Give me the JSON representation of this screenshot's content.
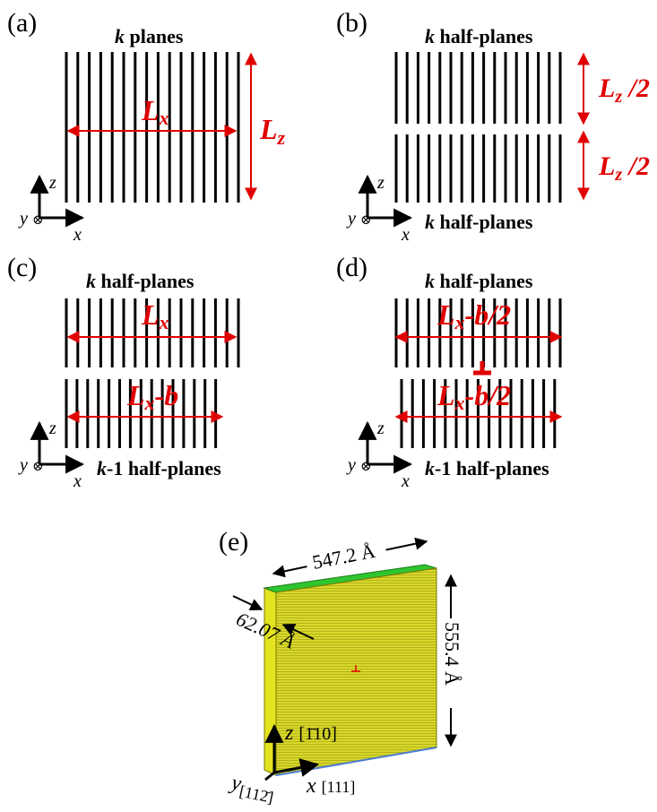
{
  "panels": {
    "a": {
      "label": "(a)",
      "top_title_bold": "k",
      "top_title_rest": " planes",
      "lx_main": "L",
      "lx_sub": "x",
      "lz_main": "L",
      "lz_sub": "z"
    },
    "b": {
      "label": "(b)",
      "top_title_bold": "k",
      "top_title_rest": " half-planes",
      "bottom_title_bold": "k",
      "bottom_title_rest": " half-planes",
      "half_main": "L",
      "half_sub": "z",
      "half_rest": " /2"
    },
    "c": {
      "label": "(c)",
      "top_title_bold": "k",
      "top_title_rest": " half-planes",
      "bottom_title_bold": "k",
      "bottom_title_rest": "-1 half-planes",
      "lx_main": "L",
      "lx_sub": "x",
      "lxb_main": "L",
      "lxb_sub": "x",
      "lxb_rest": "-b"
    },
    "d": {
      "label": "(d)",
      "top_title_bold": "k",
      "top_title_rest": " half-planes",
      "bottom_title_bold": "k",
      "bottom_title_rest": "-1 half-planes",
      "lxb2_main": "L",
      "lxb2_sub": "x",
      "lxb2_rest": "-b/2",
      "dislocation_symbol": "⊥"
    }
  },
  "axes": {
    "z": "z",
    "x": "x",
    "y": "y",
    "into_symbol": "⊗"
  },
  "panel_e": {
    "label": "(e)",
    "width_dim": "547.2 Å",
    "height_dim": "555.4 Å",
    "depth_dim": "62.07 Å",
    "z_axis": "z",
    "z_dir": "[1̄10]",
    "x_axis": "x",
    "x_dir": "[111]",
    "y_axis": "y",
    "y_dir": "[112̄]",
    "dislocation_symbol": "⊥",
    "colors": {
      "front": "#d9d82a",
      "side": "#e4e31f",
      "top": "#2fc52f",
      "edge_blue": "#4a7bd0"
    }
  },
  "colors": {
    "annotation": "#e00000",
    "lines": "#000000"
  }
}
